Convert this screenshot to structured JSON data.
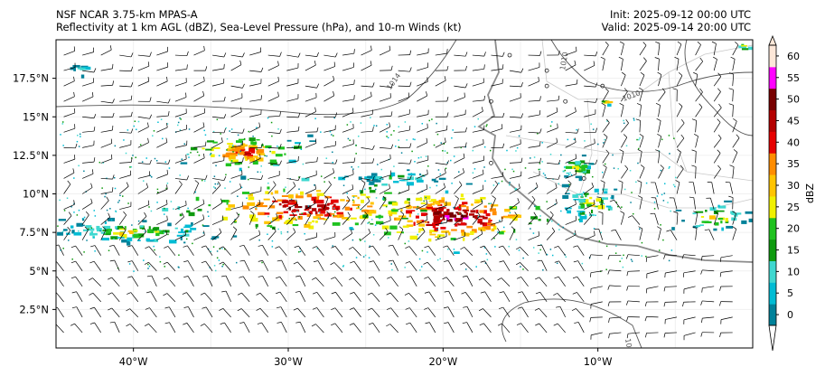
{
  "header": {
    "model": "NSF NCAR 3.75-km MPAS-A",
    "fields": "Reflectivity at 1 km AGL (dBZ), Sea-Level Pressure (hPa), and 10-m Winds (kt)",
    "init": "Init: 2025-09-12 00:00 UTC",
    "valid": "Valid: 2025-09-14 20:00 UTC"
  },
  "map": {
    "lon_range": [
      -45,
      0
    ],
    "lat_range": [
      0,
      20
    ],
    "lon_ticks": [
      {
        "value": -40,
        "label": "40°W"
      },
      {
        "value": -30,
        "label": "30°W"
      },
      {
        "value": -20,
        "label": "20°W"
      },
      {
        "value": -10,
        "label": "10°W"
      }
    ],
    "lat_ticks": [
      {
        "value": 2.5,
        "label": "2.5°N"
      },
      {
        "value": 5,
        "label": "5°N"
      },
      {
        "value": 7.5,
        "label": "7.5°N"
      },
      {
        "value": 10,
        "label": "10°N"
      },
      {
        "value": 12.5,
        "label": "12.5°N"
      },
      {
        "value": 15,
        "label": "15°N"
      },
      {
        "value": 17.5,
        "label": "17.5°N"
      }
    ],
    "isobar_labels": [
      "1014",
      "1010",
      "1010",
      "1010"
    ]
  },
  "colorbar": {
    "label": "dBZ",
    "levels": [
      0,
      5,
      10,
      15,
      20,
      25,
      30,
      35,
      40,
      45,
      50,
      55,
      60
    ],
    "colors": [
      "#00829a",
      "#00bcd4",
      "#3fd8d0",
      "#0e9a0e",
      "#1fc21f",
      "#f0f000",
      "#ffc400",
      "#ff8c00",
      "#e60000",
      "#b40000",
      "#780000",
      "#ff00ff",
      "#fde7d8"
    ]
  }
}
